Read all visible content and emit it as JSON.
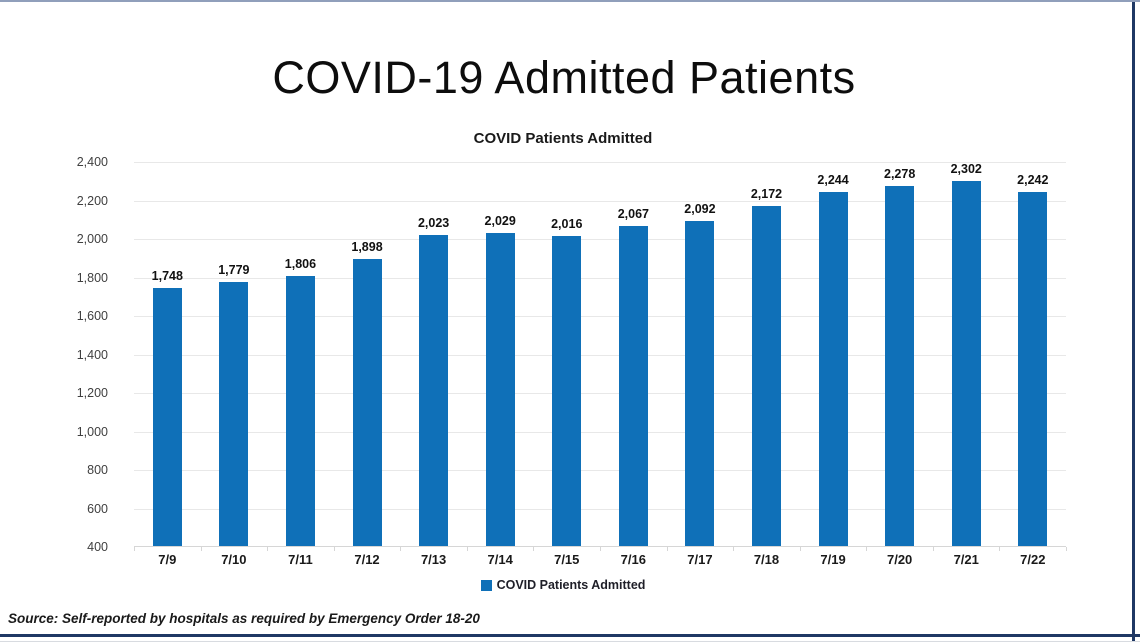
{
  "page": {
    "title": "COVID-19 Admitted Patients",
    "source_note": "Source: Self-reported by hospitals as required by Emergency Order 18-20"
  },
  "colors": {
    "bar_blue": "#0F70B8",
    "navy_accent": "#1F3864",
    "top_border": "#909FBB"
  },
  "chart_data": {
    "type": "bar",
    "title": "COVID Patients Admitted",
    "categories": [
      "7/9",
      "7/10",
      "7/11",
      "7/12",
      "7/13",
      "7/14",
      "7/15",
      "7/16",
      "7/17",
      "7/18",
      "7/19",
      "7/20",
      "7/21",
      "7/22"
    ],
    "values": [
      1748,
      1779,
      1806,
      1898,
      2023,
      2029,
      2016,
      2067,
      2092,
      2172,
      2244,
      2278,
      2302,
      2242
    ],
    "value_labels": [
      "1,748",
      "1,779",
      "1,806",
      "1,898",
      "2,023",
      "2,029",
      "2,016",
      "2,067",
      "2,092",
      "2,172",
      "2,244",
      "2,278",
      "2,302",
      "2,242"
    ],
    "xlabel": "",
    "ylabel": "",
    "ylim": [
      400,
      2400
    ],
    "ytick_step": 200,
    "ytick_labels_top_to_bottom": [
      "2,400",
      "2,200",
      "2,000",
      "1,800",
      "1,600",
      "1,400",
      "1,200",
      "1,000",
      "800",
      "600",
      "400"
    ],
    "grid": true,
    "legend": {
      "position": "bottom",
      "label": "COVID Patients Admitted"
    }
  }
}
